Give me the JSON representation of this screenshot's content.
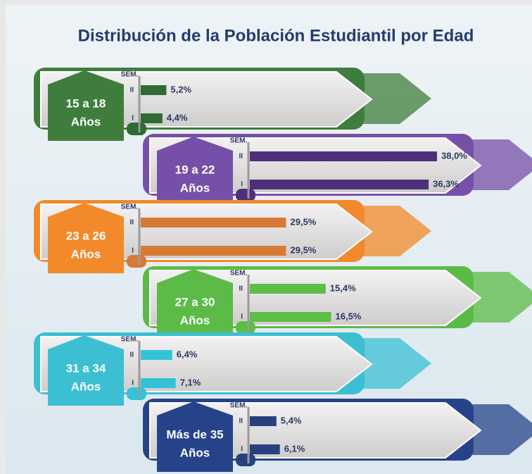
{
  "chart_data": {
    "type": "bar",
    "title": "Distribución de la Población Estudiantil por Edad",
    "axis_label": "SEM.",
    "categories": [
      [
        "15 a 18",
        "Años"
      ],
      [
        "19 a 22",
        "Años"
      ],
      [
        "23 a 26",
        "Años"
      ],
      [
        "27 a 30",
        "Años"
      ],
      [
        "31 a 34",
        "Años"
      ],
      [
        "Más de 35",
        "Años"
      ]
    ],
    "colors": [
      "#3f7d3c",
      "#7650a8",
      "#f28a2b",
      "#5cbb47",
      "#3cbfd2",
      "#26438a"
    ],
    "bar_colors": [
      "#2f6b33",
      "#4d2f7c",
      "#d77a35",
      "#5cbf45",
      "#33c3d8",
      "#27407e"
    ],
    "series": [
      {
        "name": "II",
        "values": [
          5.2,
          38.0,
          29.5,
          15.4,
          6.4,
          5.4
        ],
        "value_labels": [
          "5,2%",
          "38,0%",
          "29,5%",
          "15,4%",
          "6,4%",
          "5,4%"
        ]
      },
      {
        "name": "I",
        "values": [
          4.4,
          36.3,
          29.5,
          16.5,
          7.1,
          6.1
        ],
        "value_labels": [
          "4,4%",
          "36,3%",
          "29,5%",
          "16,5%",
          "7,1%",
          "6,1%"
        ]
      }
    ]
  }
}
